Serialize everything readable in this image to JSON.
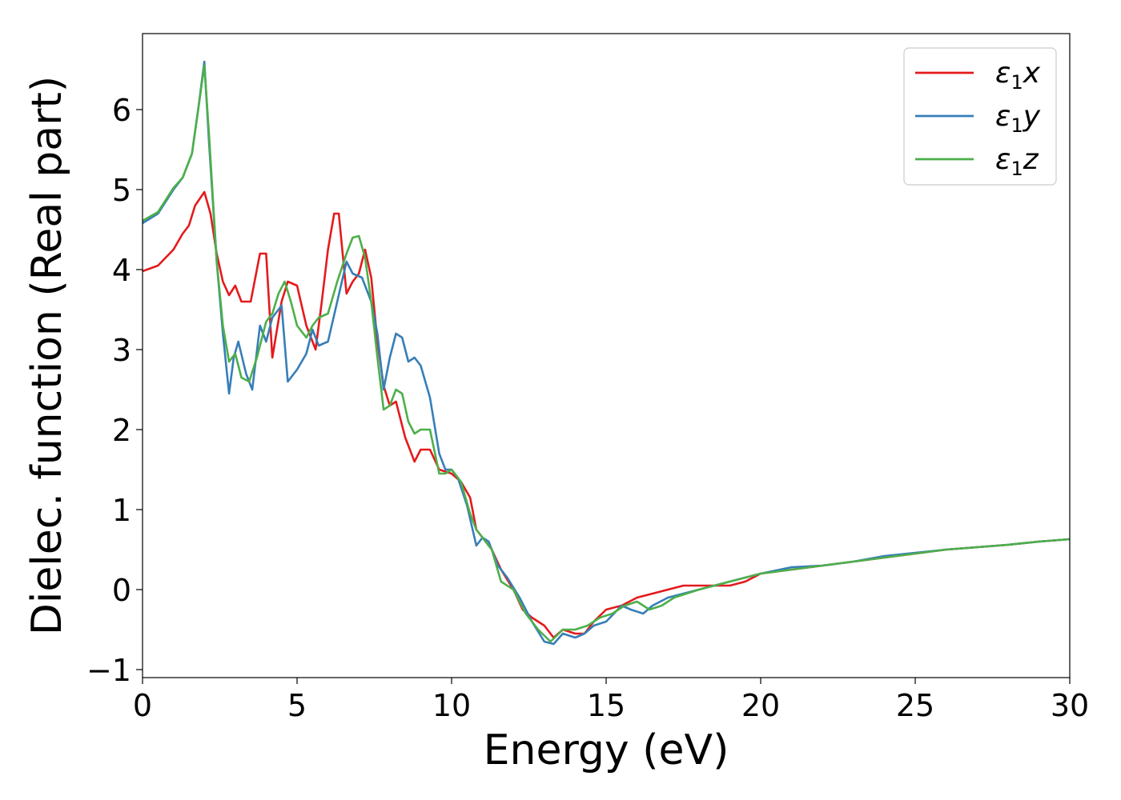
{
  "chart_data": {
    "type": "line",
    "xlabel": "Energy (eV)",
    "ylabel": "Dielec. function (Real part)",
    "xlim": [
      0,
      30
    ],
    "ylim": [
      -1.1,
      6.95
    ],
    "xticks": [
      0,
      5,
      10,
      15,
      20,
      25,
      30
    ],
    "xtick_labels": [
      "0",
      "5",
      "10",
      "15",
      "20",
      "25",
      "30"
    ],
    "yticks": [
      -1,
      0,
      1,
      2,
      3,
      4,
      5,
      6
    ],
    "ytick_labels": [
      "−1",
      "0",
      "1",
      "2",
      "3",
      "4",
      "5",
      "6"
    ],
    "grid": false,
    "legend_position": "top-right",
    "series": [
      {
        "name": "ε₁x",
        "legend": {
          "main": "ε",
          "sub": "1",
          "suffix": "x"
        },
        "color": "#e41a1c",
        "x": [
          0,
          0.5,
          1.0,
          1.3,
          1.5,
          1.7,
          2.0,
          2.2,
          2.4,
          2.6,
          2.8,
          3.0,
          3.2,
          3.5,
          3.8,
          4.0,
          4.2,
          4.5,
          4.7,
          5.0,
          5.3,
          5.6,
          5.8,
          6.0,
          6.2,
          6.35,
          6.6,
          6.8,
          7.0,
          7.2,
          7.4,
          7.6,
          7.8,
          8.0,
          8.2,
          8.5,
          8.8,
          9.0,
          9.3,
          9.6,
          10.0,
          10.3,
          10.6,
          10.8,
          11.0,
          11.3,
          11.6,
          12.0,
          12.3,
          12.6,
          13.0,
          13.3,
          13.6,
          14.0,
          14.3,
          14.6,
          15.0,
          15.5,
          16.0,
          16.5,
          17.0,
          17.5,
          18.0,
          18.5,
          19.0,
          19.5,
          20.0,
          21.0,
          22.0,
          23.0,
          24.0,
          25.0,
          26.0,
          27.0,
          28.0,
          29.0,
          30.0
        ],
        "y": [
          3.98,
          4.05,
          4.25,
          4.45,
          4.55,
          4.8,
          4.97,
          4.7,
          4.2,
          3.85,
          3.68,
          3.8,
          3.6,
          3.6,
          4.2,
          4.2,
          2.9,
          3.6,
          3.85,
          3.8,
          3.3,
          3.0,
          3.6,
          4.25,
          4.7,
          4.7,
          3.7,
          3.85,
          3.95,
          4.25,
          3.9,
          3.1,
          2.55,
          2.3,
          2.35,
          1.9,
          1.6,
          1.75,
          1.75,
          1.5,
          1.45,
          1.35,
          1.15,
          0.75,
          0.65,
          0.5,
          0.25,
          0.0,
          -0.25,
          -0.35,
          -0.45,
          -0.6,
          -0.5,
          -0.55,
          -0.55,
          -0.4,
          -0.25,
          -0.2,
          -0.1,
          -0.05,
          0.0,
          0.05,
          0.05,
          0.05,
          0.05,
          0.1,
          0.2,
          0.25,
          0.3,
          0.35,
          0.4,
          0.45,
          0.5,
          0.53,
          0.56,
          0.6,
          0.63
        ]
      },
      {
        "name": "ε₁y",
        "legend": {
          "main": "ε",
          "sub": "1",
          "suffix": "y"
        },
        "color": "#377eb8",
        "x": [
          0,
          0.5,
          1.0,
          1.3,
          1.6,
          1.8,
          2.0,
          2.15,
          2.4,
          2.6,
          2.8,
          2.95,
          3.1,
          3.35,
          3.55,
          3.8,
          4.0,
          4.2,
          4.5,
          4.7,
          5.0,
          5.3,
          5.5,
          5.7,
          6.0,
          6.3,
          6.6,
          6.8,
          7.1,
          7.4,
          7.6,
          7.8,
          8.0,
          8.2,
          8.4,
          8.6,
          8.8,
          9.0,
          9.3,
          9.6,
          9.8,
          10.0,
          10.2,
          10.5,
          10.8,
          11.0,
          11.2,
          11.5,
          11.8,
          12.2,
          12.6,
          13.0,
          13.3,
          13.6,
          14.0,
          14.3,
          14.6,
          15.0,
          15.5,
          15.8,
          16.2,
          16.5,
          17.0,
          17.5,
          18.0,
          18.5,
          19.0,
          19.5,
          20.0,
          21.0,
          22.0,
          23.0,
          24.0,
          25.0,
          26.0,
          27.0,
          28.0,
          29.0,
          30.0
        ],
        "y": [
          4.58,
          4.7,
          5.0,
          5.15,
          5.45,
          6.0,
          6.6,
          5.6,
          4.1,
          3.2,
          2.45,
          2.9,
          3.1,
          2.7,
          2.5,
          3.3,
          3.1,
          3.4,
          3.55,
          2.6,
          2.75,
          2.95,
          3.25,
          3.05,
          3.1,
          3.6,
          4.1,
          3.95,
          3.9,
          3.6,
          3.2,
          2.5,
          2.9,
          3.2,
          3.15,
          2.85,
          2.9,
          2.8,
          2.4,
          1.7,
          1.5,
          1.5,
          1.4,
          1.05,
          0.55,
          0.65,
          0.6,
          0.3,
          0.15,
          -0.1,
          -0.4,
          -0.65,
          -0.68,
          -0.55,
          -0.6,
          -0.55,
          -0.45,
          -0.4,
          -0.2,
          -0.25,
          -0.3,
          -0.2,
          -0.1,
          -0.05,
          0.0,
          0.05,
          0.1,
          0.15,
          0.2,
          0.28,
          0.3,
          0.35,
          0.42,
          0.46,
          0.5,
          0.53,
          0.56,
          0.6,
          0.63
        ]
      },
      {
        "name": "ε₁z",
        "legend": {
          "main": "ε",
          "sub": "1",
          "suffix": "z"
        },
        "color": "#4daf4a",
        "x": [
          0,
          0.5,
          1.0,
          1.3,
          1.6,
          1.8,
          2.0,
          2.15,
          2.4,
          2.6,
          2.8,
          3.0,
          3.2,
          3.45,
          3.7,
          4.0,
          4.2,
          4.4,
          4.6,
          4.8,
          5.0,
          5.3,
          5.5,
          5.7,
          6.0,
          6.3,
          6.6,
          6.8,
          7.0,
          7.2,
          7.4,
          7.6,
          7.8,
          8.0,
          8.2,
          8.4,
          8.6,
          8.8,
          9.0,
          9.3,
          9.6,
          9.8,
          10.0,
          10.3,
          10.6,
          10.8,
          11.0,
          11.3,
          11.6,
          12.0,
          12.4,
          12.8,
          13.2,
          13.6,
          14.0,
          14.4,
          14.8,
          15.2,
          15.6,
          16.0,
          16.4,
          16.8,
          17.2,
          17.6,
          18.0,
          18.5,
          19.0,
          19.5,
          20.0,
          21.0,
          22.0,
          23.0,
          24.0,
          25.0,
          26.0,
          27.0,
          28.0,
          29.0,
          30.0
        ],
        "y": [
          4.61,
          4.72,
          5.02,
          5.15,
          5.45,
          6.0,
          6.55,
          5.7,
          4.1,
          3.3,
          2.85,
          2.95,
          2.65,
          2.6,
          2.9,
          3.35,
          3.45,
          3.7,
          3.85,
          3.6,
          3.3,
          3.15,
          3.3,
          3.4,
          3.45,
          3.85,
          4.2,
          4.4,
          4.42,
          4.15,
          3.6,
          2.9,
          2.25,
          2.3,
          2.5,
          2.45,
          2.1,
          1.95,
          2.0,
          2.0,
          1.45,
          1.45,
          1.5,
          1.35,
          0.95,
          0.75,
          0.65,
          0.5,
          0.1,
          0.0,
          -0.3,
          -0.5,
          -0.65,
          -0.5,
          -0.5,
          -0.45,
          -0.35,
          -0.3,
          -0.2,
          -0.15,
          -0.25,
          -0.2,
          -0.1,
          -0.05,
          0.0,
          0.05,
          0.1,
          0.15,
          0.2,
          0.25,
          0.3,
          0.35,
          0.4,
          0.45,
          0.5,
          0.53,
          0.56,
          0.6,
          0.63
        ]
      }
    ]
  }
}
